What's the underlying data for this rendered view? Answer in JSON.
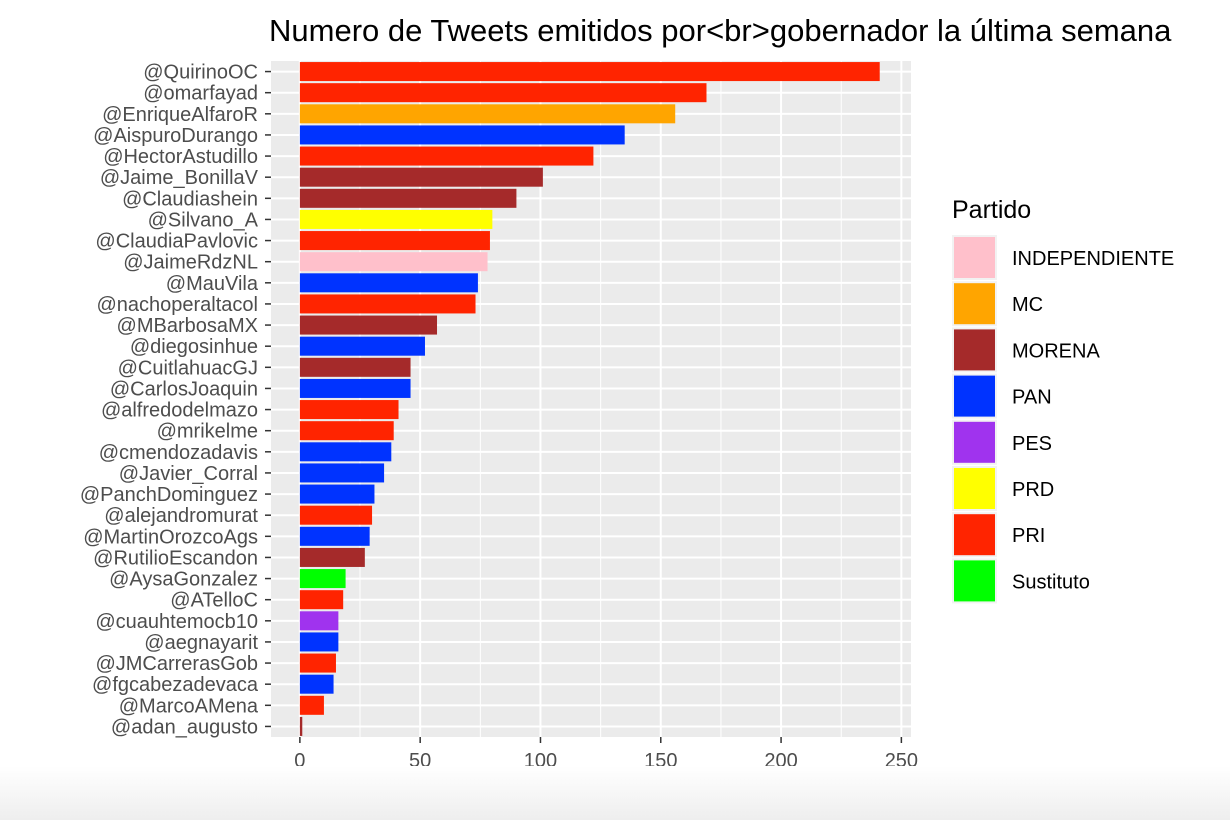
{
  "chart_data": {
    "type": "bar",
    "orientation": "horizontal",
    "title": "Numero de Tweets emitidos por<br>gobernador la última semana",
    "xlabel": "",
    "ylabel": "",
    "xlim": [
      -12,
      254
    ],
    "x_ticks": [
      0,
      50,
      100,
      150,
      200,
      250
    ],
    "grid": true,
    "legend_title": "Partido",
    "legend_position": "right",
    "legend": [
      {
        "name": "INDEPENDIENTE",
        "color": "#FFC0CB"
      },
      {
        "name": "MC",
        "color": "#FFA500"
      },
      {
        "name": "MORENA",
        "color": "#A52A2A"
      },
      {
        "name": "PAN",
        "color": "#0033FF"
      },
      {
        "name": "PES",
        "color": "#A033EE"
      },
      {
        "name": "PRD",
        "color": "#FFFF00"
      },
      {
        "name": "PRI",
        "color": "#FF2400"
      },
      {
        "name": "Sustituto",
        "color": "#00FF00"
      }
    ],
    "bars": [
      {
        "label": "@QuirinoOC",
        "value": 241,
        "party": "PRI"
      },
      {
        "label": "@omarfayad",
        "value": 169,
        "party": "PRI"
      },
      {
        "label": "@EnriqueAlfaroR",
        "value": 156,
        "party": "MC"
      },
      {
        "label": "@AispuroDurango",
        "value": 135,
        "party": "PAN"
      },
      {
        "label": "@HectorAstudillo",
        "value": 122,
        "party": "PRI"
      },
      {
        "label": "@Jaime_BonillaV",
        "value": 101,
        "party": "MORENA"
      },
      {
        "label": "@Claudiashein",
        "value": 90,
        "party": "MORENA"
      },
      {
        "label": "@Silvano_A",
        "value": 80,
        "party": "PRD"
      },
      {
        "label": "@ClaudiaPavlovic",
        "value": 79,
        "party": "PRI"
      },
      {
        "label": "@JaimeRdzNL",
        "value": 78,
        "party": "INDEPENDIENTE"
      },
      {
        "label": "@MauVila",
        "value": 74,
        "party": "PAN"
      },
      {
        "label": "@nachoperaltacol",
        "value": 73,
        "party": "PRI"
      },
      {
        "label": "@MBarbosaMX",
        "value": 57,
        "party": "MORENA"
      },
      {
        "label": "@diegosinhue",
        "value": 52,
        "party": "PAN"
      },
      {
        "label": "@CuitlahuacGJ",
        "value": 46,
        "party": "MORENA"
      },
      {
        "label": "@CarlosJoaquin",
        "value": 46,
        "party": "PAN"
      },
      {
        "label": "@alfredodelmazo",
        "value": 41,
        "party": "PRI"
      },
      {
        "label": "@mrikelme",
        "value": 39,
        "party": "PRI"
      },
      {
        "label": "@cmendozadavis",
        "value": 38,
        "party": "PAN"
      },
      {
        "label": "@Javier_Corral",
        "value": 35,
        "party": "PAN"
      },
      {
        "label": "@PanchDominguez",
        "value": 31,
        "party": "PAN"
      },
      {
        "label": "@alejandromurat",
        "value": 30,
        "party": "PRI"
      },
      {
        "label": "@MartinOrozcoAgs",
        "value": 29,
        "party": "PAN"
      },
      {
        "label": "@RutilioEscandon",
        "value": 27,
        "party": "MORENA"
      },
      {
        "label": "@AysaGonzalez",
        "value": 19,
        "party": "Sustituto"
      },
      {
        "label": "@ATelloC",
        "value": 18,
        "party": "PRI"
      },
      {
        "label": "@cuauhtemocb10",
        "value": 16,
        "party": "PES"
      },
      {
        "label": "@aegnayarit",
        "value": 16,
        "party": "PAN"
      },
      {
        "label": "@JMCarrerasGob",
        "value": 15,
        "party": "PRI"
      },
      {
        "label": "@fgcabezadevaca",
        "value": 14,
        "party": "PAN"
      },
      {
        "label": "@MarcoAMena",
        "value": 10,
        "party": "PRI"
      },
      {
        "label": "@adan_augusto",
        "value": 1,
        "party": "MORENA"
      }
    ]
  }
}
